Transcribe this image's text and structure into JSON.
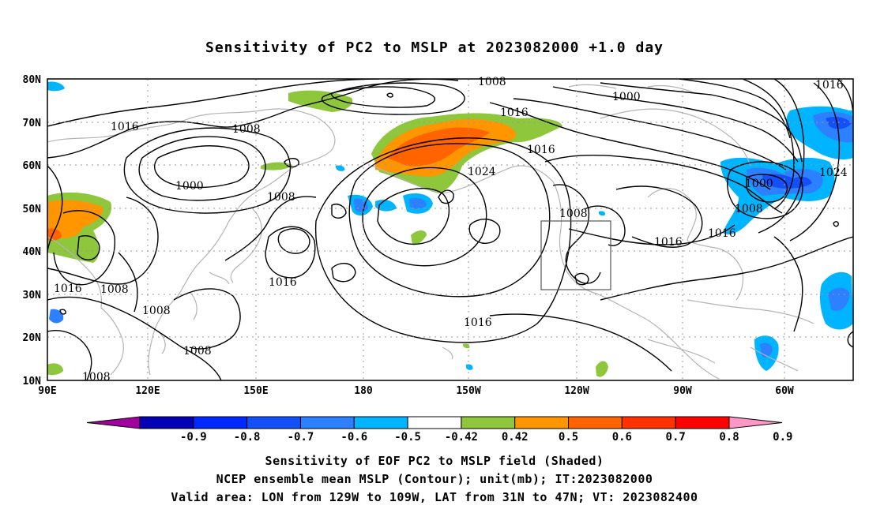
{
  "title": "Sensitivity of PC2 to MSLP at 2023082000 +1.0 day",
  "map": {
    "lat_labels": [
      "80N",
      "70N",
      "60N",
      "50N",
      "40N",
      "30N",
      "20N",
      "10N"
    ],
    "lon_labels": [
      "90E",
      "120E",
      "150E",
      "180",
      "150W",
      "120W",
      "90W",
      "60W"
    ],
    "contour_labels": [
      "1008",
      "1016",
      "1000",
      "1016",
      "1016",
      "1008",
      "1000",
      "1016",
      "1016",
      "1024",
      "1008",
      "1016",
      "1016",
      "1008",
      "1000",
      "1008",
      "1016",
      "1024",
      "1016",
      "1008",
      "1008",
      "1016",
      "1008",
      "1008"
    ],
    "colors": {
      "land_outline": "#b4b4b4",
      "contour": "#000000",
      "grid": "#9a9a9a"
    },
    "valid_box": {
      "lon_range": "129W to 109W",
      "lat_range": "31N to 47N"
    }
  },
  "colorbar": {
    "labels": [
      "-0.9",
      "-0.8",
      "-0.7",
      "-0.6",
      "-0.5",
      "-0.42",
      "0.42",
      "0.5",
      "0.6",
      "0.7",
      "0.8",
      "0.9"
    ],
    "colors": [
      "#a0009c",
      "#0000b4",
      "#0028ff",
      "#1450fa",
      "#2d80ff",
      "#00b4ff",
      "#ffffff",
      "#8ec63c",
      "#ff9600",
      "#ff6400",
      "#ff3200",
      "#ff0000",
      "#ff96c8"
    ]
  },
  "captions": [
    "Sensitivity of EOF PC2 to MSLP field (Shaded)",
    "NCEP ensemble mean MSLP (Contour); unit(mb); IT:2023082000",
    "Valid area: LON from 129W to 109W, LAT from 31N to 47N; VT: 2023082400"
  ]
}
